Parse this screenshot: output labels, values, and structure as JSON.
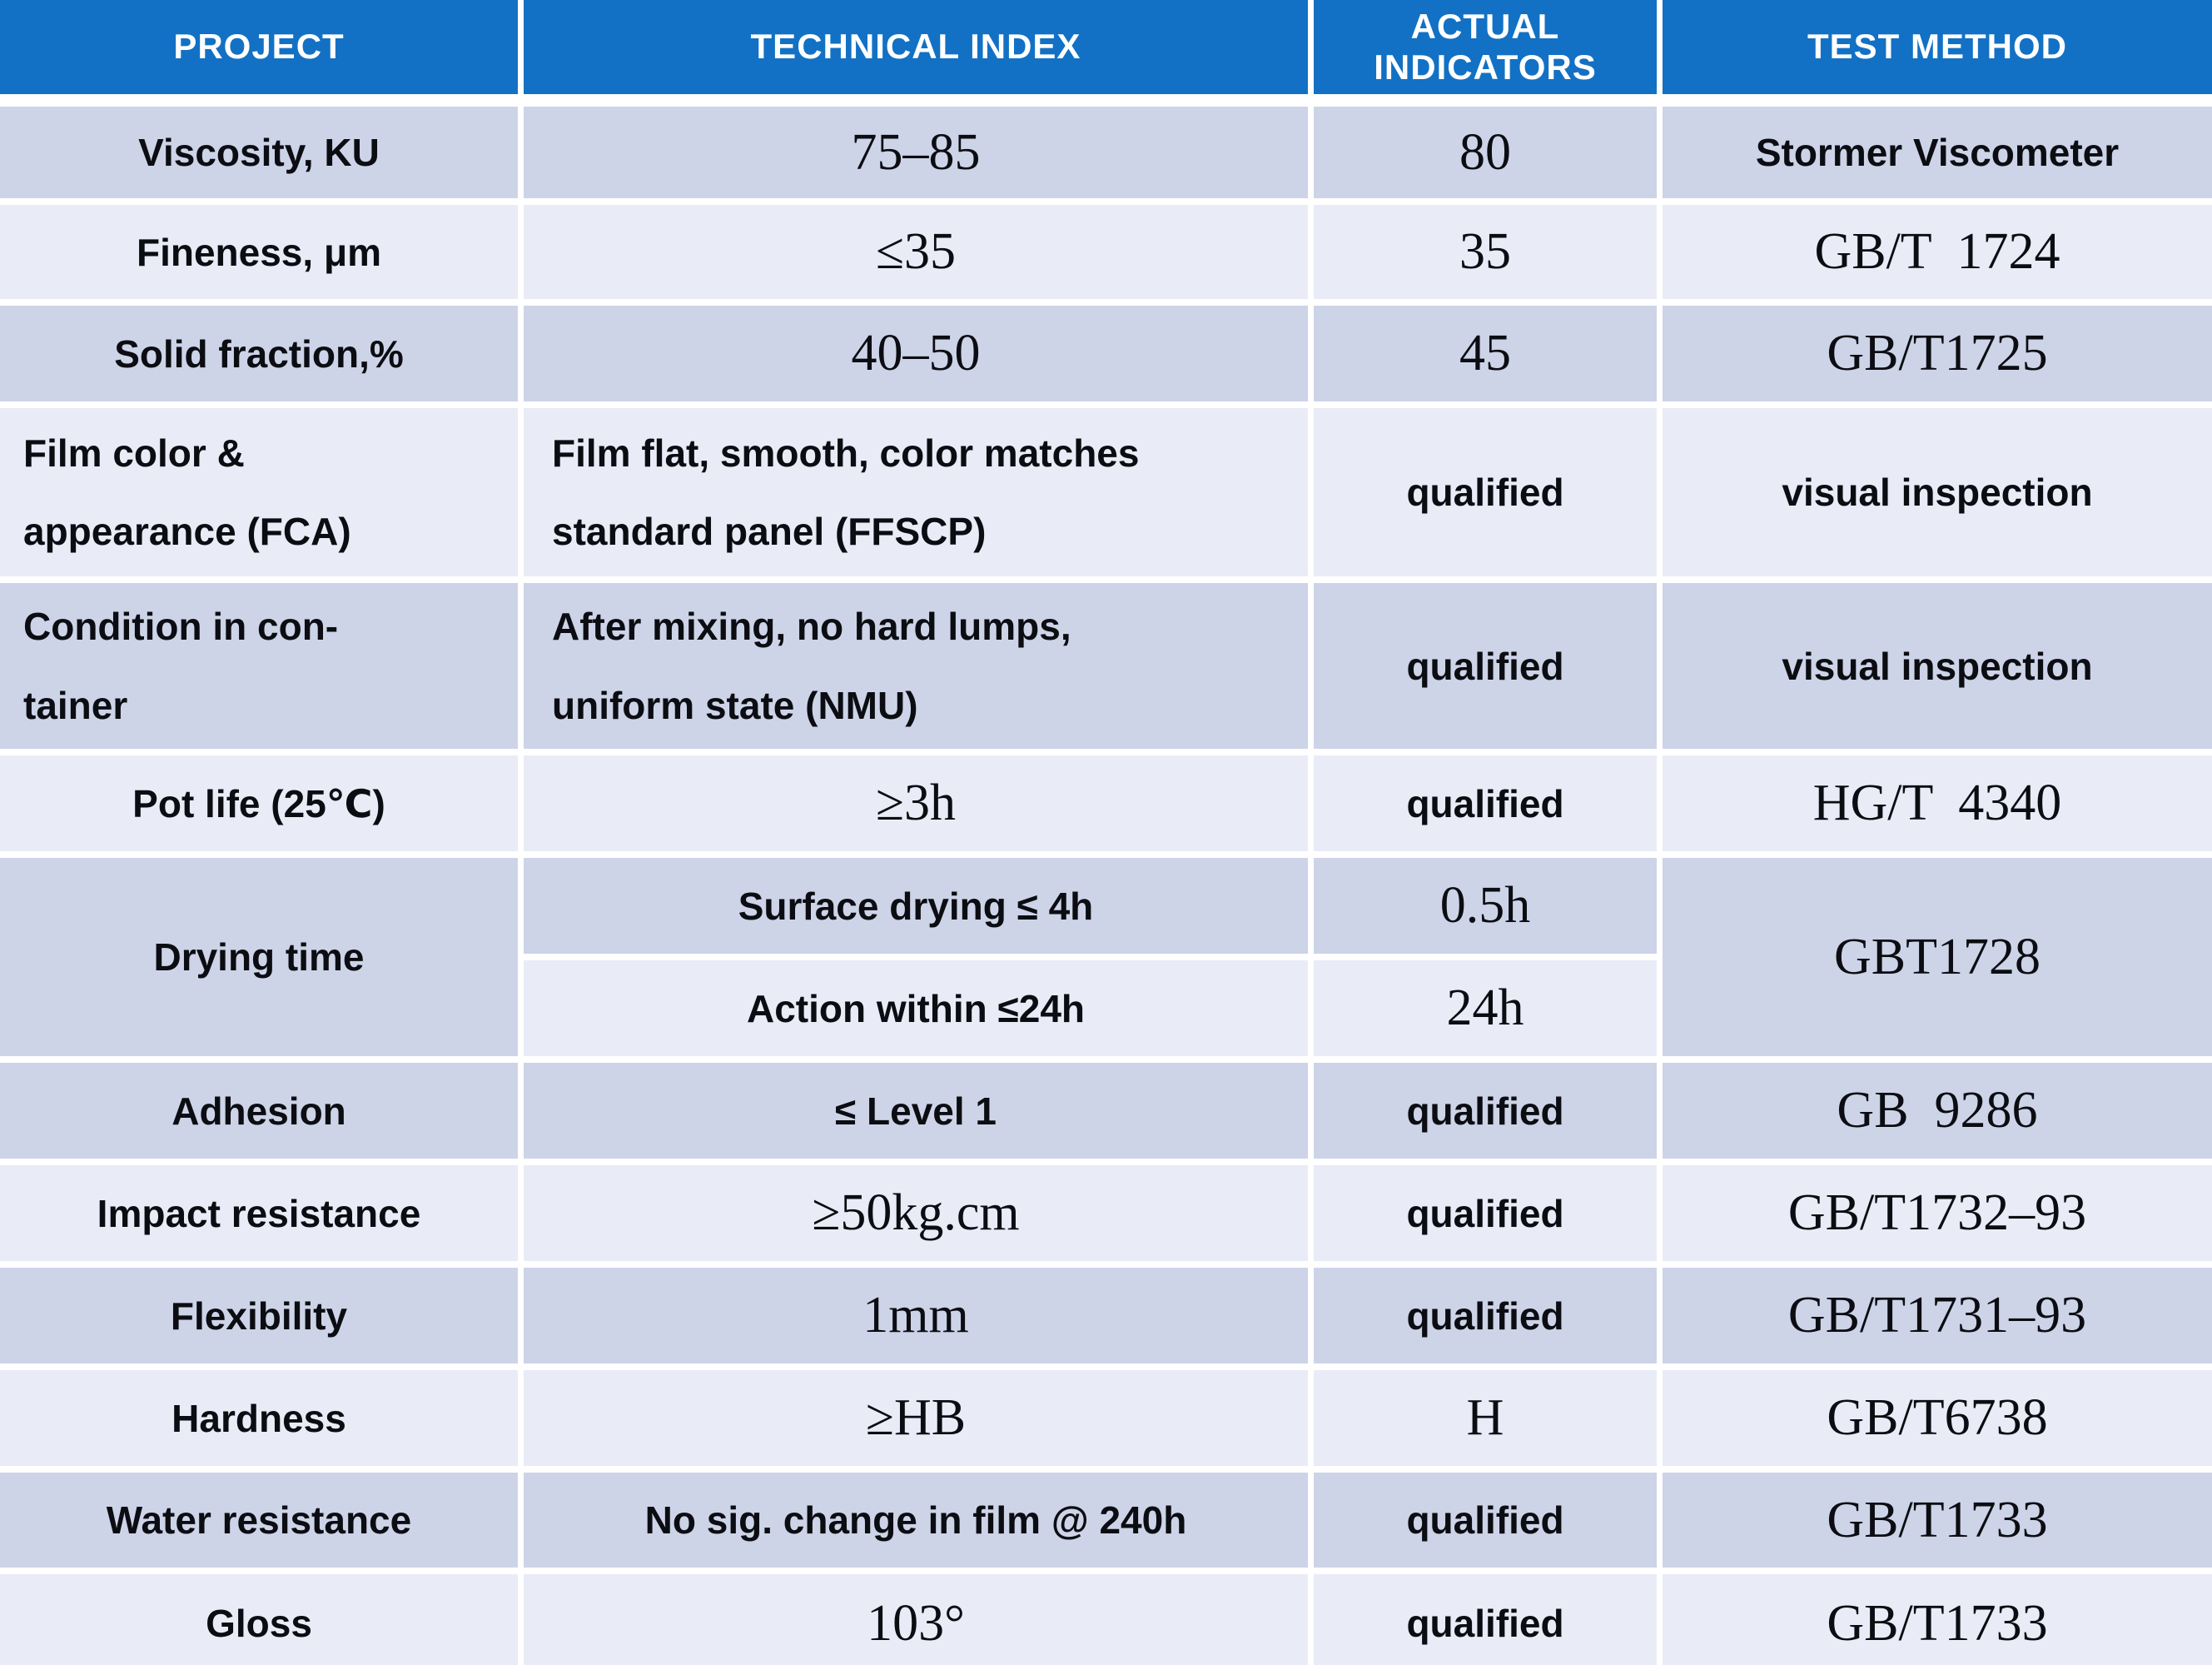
{
  "colors": {
    "header_bg": "#1271C4",
    "header_text": "#FFFFFF",
    "row_dark": "#CDD4E8",
    "row_light": "#E9ECF6",
    "gap": "#FFFFFF",
    "body_text": "#0C0D12"
  },
  "table": {
    "header": {
      "project": "PROJECT",
      "technical_index": "TECHNICAL INDEX",
      "actual_indicators": "ACTUAL INDICATORS",
      "test_method": "TEST METHOD"
    },
    "rows": [
      {
        "project": "Viscosity, KU",
        "tech": "75–85",
        "actual": "80",
        "method": "Stormer Viscometer"
      },
      {
        "project": "Fineness, μm",
        "tech": "≤35",
        "actual": "35",
        "method": "GB/T  1724"
      },
      {
        "project": "Solid fraction,%",
        "tech": "40–50",
        "actual": "45",
        "method": "GB/T1725"
      },
      {
        "project": "Film color &\nappearance (FCA)",
        "tech": "Film flat, smooth, color matches\nstandard panel (FFSCP)",
        "actual": "qualified",
        "method": "visual inspection"
      },
      {
        "project": "Condition in con-\ntainer",
        "tech": "After mixing, no hard lumps,\nuniform state (NMU)",
        "actual": "qualified",
        "method": "visual inspection"
      },
      {
        "project": "Pot life (25℃)",
        "tech": "≥3h",
        "actual": "qualified",
        "method": "HG/T  4340"
      },
      {
        "project": "Drying time",
        "sub": [
          {
            "tech": "Surface drying ≤ 4h",
            "actual": "0.5h"
          },
          {
            "tech": "Action within ≤24h",
            "actual": "24h"
          }
        ],
        "method": "GBT1728"
      },
      {
        "project": "Adhesion",
        "tech": "≤ Level 1",
        "actual": "qualified",
        "method": "GB  9286"
      },
      {
        "project": "Impact resistance",
        "tech": "≥50kg.cm",
        "actual": "qualified",
        "method": "GB/T1732–93"
      },
      {
        "project": "Flexibility",
        "tech": "1mm",
        "actual": "qualified",
        "method": "GB/T1731–93"
      },
      {
        "project": "Hardness",
        "tech": "≥HB",
        "actual": "H",
        "method": "GB/T6738"
      },
      {
        "project": "Water resistance",
        "tech": "No sig. change in film @ 240h",
        "actual": "qualified",
        "method": "GB/T1733"
      },
      {
        "project": "Gloss",
        "tech": "103°",
        "actual": "qualified",
        "method": "GB/T1733"
      }
    ]
  }
}
